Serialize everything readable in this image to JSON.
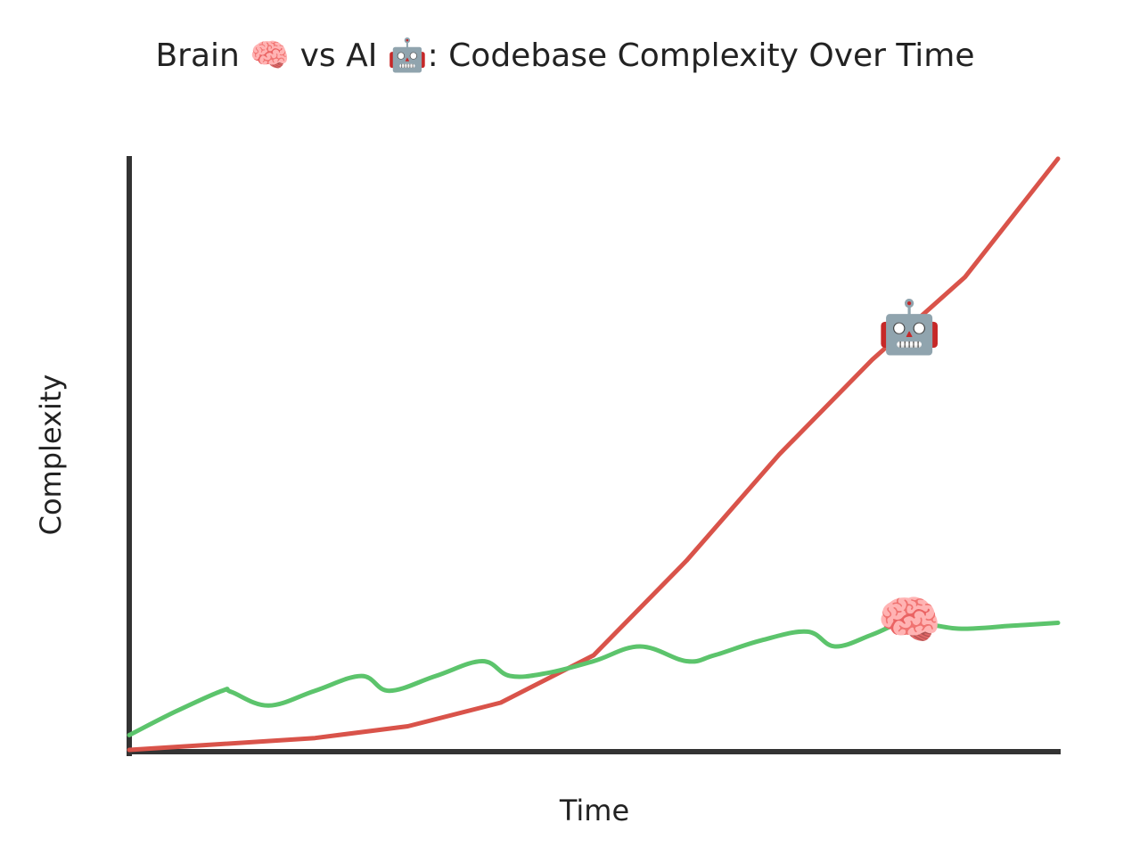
{
  "chart_data": {
    "type": "line",
    "title": "Brain 🧠 vs AI 🤖: Codebase Complexity Over Time",
    "xlabel": "Time",
    "ylabel": "Complexity",
    "xlim": [
      0,
      10
    ],
    "ylim": [
      0,
      100
    ],
    "grid": false,
    "legend": "none",
    "series": [
      {
        "key": "ai",
        "marker": "🤖",
        "marker_icon": "robot-icon",
        "marker_x": 8.4,
        "color": "#d9534a",
        "x": [
          0,
          1,
          2,
          3,
          4,
          5,
          6,
          7,
          8,
          9,
          10
        ],
        "y": [
          0,
          1,
          2,
          4,
          8,
          16,
          32,
          50,
          66,
          80,
          100
        ]
      },
      {
        "key": "brain",
        "marker": "🧠",
        "marker_icon": "brain-icon",
        "marker_x": 8.4,
        "color": "#5cc46c",
        "x": [
          0,
          0.5,
          1,
          1.1,
          1.5,
          2,
          2.5,
          2.8,
          3.3,
          3.8,
          4.1,
          4.5,
          5,
          5.5,
          6,
          6.3,
          6.8,
          7.3,
          7.6,
          8,
          8.4,
          8.7,
          9,
          9.5,
          10
        ],
        "y": [
          2.5,
          6.5,
          10,
          9.8,
          7.5,
          10,
          12.5,
          10,
          12.5,
          15,
          12.5,
          13,
          15,
          17.5,
          15,
          16,
          18.5,
          20,
          17.5,
          19.5,
          22,
          21,
          20.5,
          21,
          21.5
        ]
      }
    ]
  }
}
